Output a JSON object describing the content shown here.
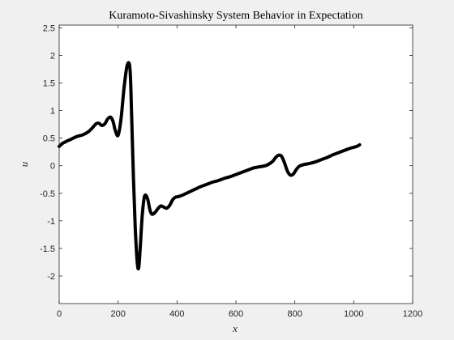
{
  "chart_data": {
    "type": "line",
    "title": "Kuramoto-Sivashinsky System Behavior in Expectation",
    "xlabel": "x",
    "ylabel": "u",
    "xlim": [
      0,
      1200
    ],
    "ylim": [
      -2.5,
      2.55
    ],
    "xticks": [
      0,
      200,
      400,
      600,
      800,
      1000,
      1200
    ],
    "yticks": [
      -2,
      -1.5,
      -1,
      -0.5,
      0,
      0.5,
      1,
      1.5,
      2,
      2.5
    ],
    "xtick_labels": [
      "0",
      "200",
      "400",
      "600",
      "800",
      "1000",
      "1200"
    ],
    "ytick_labels": [
      "-2",
      "-1.5",
      "-1",
      "-0.5",
      "0",
      "0.5",
      "1",
      "1.5",
      "2",
      "2.5"
    ],
    "grid": false,
    "legend": "none",
    "line_color": "#000000",
    "series": [
      {
        "x": [
          0,
          10,
          20,
          40,
          60,
          80,
          100,
          115,
          125,
          135,
          145,
          155,
          165,
          175,
          183,
          190,
          200,
          210,
          220,
          230,
          238,
          242,
          246,
          252,
          258,
          265,
          270,
          275,
          282,
          290,
          300,
          308,
          315,
          325,
          335,
          345,
          355,
          365,
          375,
          385,
          395,
          405,
          420,
          440,
          460,
          480,
          500,
          520,
          540,
          560,
          580,
          600,
          620,
          640,
          660,
          680,
          700,
          715,
          725,
          735,
          745,
          755,
          765,
          775,
          785,
          795,
          805,
          815,
          830,
          850,
          870,
          890,
          910,
          930,
          950,
          970,
          990,
          1010,
          1020
        ],
        "y": [
          0.35,
          0.4,
          0.43,
          0.48,
          0.53,
          0.56,
          0.62,
          0.7,
          0.76,
          0.77,
          0.73,
          0.76,
          0.85,
          0.88,
          0.8,
          0.65,
          0.55,
          0.85,
          1.4,
          1.8,
          1.85,
          1.6,
          0.9,
          -0.2,
          -1.1,
          -1.75,
          -1.85,
          -1.5,
          -0.9,
          -0.55,
          -0.6,
          -0.8,
          -0.88,
          -0.85,
          -0.78,
          -0.73,
          -0.75,
          -0.77,
          -0.72,
          -0.62,
          -0.57,
          -0.56,
          -0.53,
          -0.48,
          -0.43,
          -0.38,
          -0.34,
          -0.3,
          -0.27,
          -0.23,
          -0.2,
          -0.16,
          -0.12,
          -0.08,
          -0.04,
          -0.02,
          0,
          0.04,
          0.08,
          0.15,
          0.19,
          0.17,
          0.05,
          -0.1,
          -0.17,
          -0.15,
          -0.07,
          -0.01,
          0.02,
          0.04,
          0.07,
          0.11,
          0.15,
          0.2,
          0.24,
          0.28,
          0.32,
          0.35,
          0.38
        ]
      }
    ]
  }
}
